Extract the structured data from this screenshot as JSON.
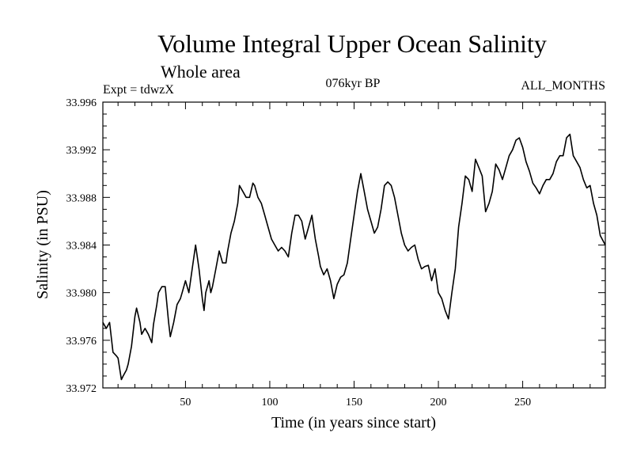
{
  "chart_data": {
    "type": "line",
    "title": "Volume Integral Upper Ocean Salinity",
    "subtitle": "Whole area",
    "expt_label": "Expt = tdwzX",
    "period_label": "076kyr BP",
    "months_label": "ALL_MONTHS",
    "xlabel": "Time (in years since start)",
    "ylabel": "Salinity (in PSU)",
    "xlim": [
      1,
      299
    ],
    "ylim": [
      33.972,
      33.996
    ],
    "x_ticks": [
      50,
      100,
      150,
      200,
      250
    ],
    "x_tick_labels": [
      "50",
      "100",
      "150",
      "200",
      "250"
    ],
    "y_ticks": [
      33.972,
      33.976,
      33.98,
      33.984,
      33.988,
      33.992,
      33.996
    ],
    "y_tick_labels": [
      "33.972",
      "33.976",
      "33.980",
      "33.984",
      "33.988",
      "33.992",
      "33.996"
    ],
    "grid": false,
    "series": [
      {
        "color": "#000000",
        "x": [
          1,
          3,
          5,
          7,
          9,
          10,
          12,
          13,
          15,
          16,
          18,
          20,
          21,
          23,
          24,
          26,
          28,
          30,
          31,
          33,
          34,
          36,
          38,
          40,
          41,
          43,
          45,
          47,
          48,
          50,
          52,
          54,
          56,
          58,
          60,
          61,
          62,
          64,
          65,
          66,
          68,
          70,
          71,
          72,
          74,
          75,
          77,
          79,
          81,
          82,
          84,
          86,
          88,
          90,
          91,
          93,
          95,
          97,
          99,
          101,
          103,
          105,
          107,
          109,
          111,
          113,
          115,
          117,
          119,
          121,
          123,
          125,
          127,
          129,
          130,
          132,
          134,
          136,
          138,
          140,
          142,
          144,
          146,
          148,
          150,
          152,
          154,
          156,
          158,
          160,
          162,
          164,
          166,
          168,
          170,
          172,
          174,
          176,
          178,
          180,
          182,
          184,
          186,
          188,
          190,
          192,
          194,
          196,
          198,
          200,
          202,
          204,
          206,
          208,
          210,
          212,
          214,
          216,
          218,
          220,
          222,
          224,
          226,
          228,
          230,
          232,
          234,
          236,
          238,
          240,
          242,
          244,
          246,
          248,
          250,
          252,
          254,
          256,
          258,
          260,
          262,
          264,
          266,
          268,
          270,
          272,
          274,
          276,
          278,
          280,
          282,
          284,
          286,
          288,
          290,
          292,
          294,
          296,
          299
        ],
        "y": [
          33.9775,
          33.977,
          33.9775,
          33.975,
          33.9747,
          33.9745,
          33.9727,
          33.973,
          33.9735,
          33.974,
          33.9755,
          33.978,
          33.9787,
          33.9775,
          33.9765,
          33.977,
          33.9765,
          33.9758,
          33.9773,
          33.979,
          33.98,
          33.9805,
          33.9805,
          33.9775,
          33.9763,
          33.9775,
          33.979,
          33.9795,
          33.98,
          33.981,
          33.98,
          33.982,
          33.984,
          33.982,
          33.9795,
          33.9785,
          33.98,
          33.981,
          33.98,
          33.9805,
          33.982,
          33.9835,
          33.983,
          33.9825,
          33.9825,
          33.9835,
          33.985,
          33.986,
          33.9875,
          33.989,
          33.9885,
          33.988,
          33.988,
          33.9892,
          33.989,
          33.988,
          33.9875,
          33.9865,
          33.9855,
          33.9845,
          33.984,
          33.9835,
          33.9838,
          33.9835,
          33.983,
          33.985,
          33.9865,
          33.9865,
          33.986,
          33.9845,
          33.9855,
          33.9865,
          33.9845,
          33.983,
          33.9822,
          33.9815,
          33.982,
          33.981,
          33.9795,
          33.9807,
          33.9813,
          33.9815,
          33.9825,
          33.9845,
          33.9865,
          33.9885,
          33.99,
          33.9885,
          33.987,
          33.986,
          33.985,
          33.9855,
          33.987,
          33.989,
          33.9893,
          33.989,
          33.988,
          33.9865,
          33.985,
          33.984,
          33.9835,
          33.9838,
          33.984,
          33.9828,
          33.982,
          33.9822,
          33.9823,
          33.981,
          33.982,
          33.98,
          33.9795,
          33.9785,
          33.9778,
          33.98,
          33.982,
          33.9855,
          33.9875,
          33.9898,
          33.9895,
          33.9885,
          33.9912,
          33.9905,
          33.9898,
          33.9868,
          33.9875,
          33.9885,
          33.9908,
          33.9903,
          33.9895,
          33.9905,
          33.9915,
          33.992,
          33.9928,
          33.993,
          33.9922,
          33.991,
          33.9902,
          33.9892,
          33.9888,
          33.9883,
          33.989,
          33.9895,
          33.9895,
          33.99,
          33.991,
          33.9915,
          33.9915,
          33.993,
          33.9933,
          33.9915,
          33.991,
          33.9905,
          33.9895,
          33.9888,
          33.989,
          33.9875,
          33.9865,
          33.9848,
          33.984
        ]
      }
    ]
  }
}
